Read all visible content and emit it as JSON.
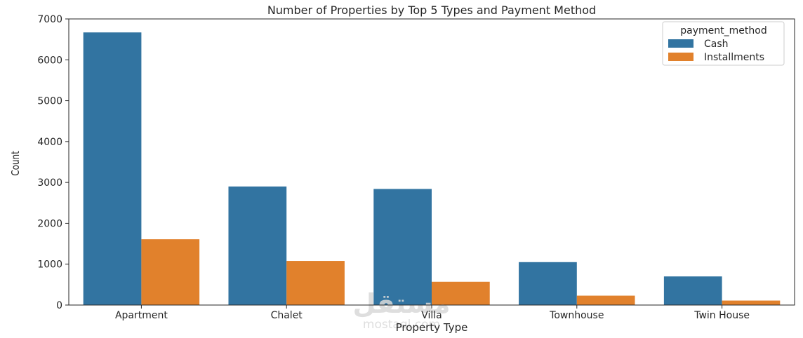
{
  "chart_data": {
    "type": "bar",
    "title": "Number of Properties by Top 5 Types and Payment Method",
    "xlabel": "Property Type",
    "ylabel": "Count",
    "categories": [
      "Apartment",
      "Chalet",
      "Villa",
      "Townhouse",
      "Twin House"
    ],
    "series": [
      {
        "name": "Cash",
        "color": "#3274a1",
        "values": [
          6670,
          2900,
          2840,
          1050,
          700
        ]
      },
      {
        "name": "Installments",
        "color": "#e1812c",
        "values": [
          1610,
          1080,
          570,
          230,
          110
        ]
      }
    ],
    "ylim": [
      0,
      7000
    ],
    "yticks": [
      0,
      1000,
      2000,
      3000,
      4000,
      5000,
      6000,
      7000
    ],
    "grid": false,
    "legend": {
      "title": "payment_method",
      "placement": "top-right"
    }
  },
  "watermark": {
    "arabic": "مستقل",
    "latin": "mostaql.com"
  }
}
